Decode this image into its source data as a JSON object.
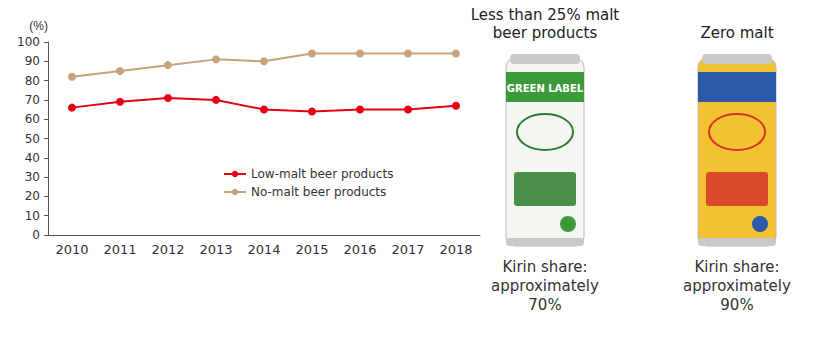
{
  "chart_data": {
    "type": "line",
    "y_label": "(%)",
    "categories": [
      "2010",
      "2011",
      "2012",
      "2013",
      "2014",
      "2015",
      "2016",
      "2017",
      "2018"
    ],
    "series": [
      {
        "name": "Low-malt beer products",
        "color": "#e60012",
        "marker": "circle",
        "values": [
          66,
          69,
          71,
          70,
          65,
          64,
          65,
          65,
          67
        ]
      },
      {
        "name": "No-malt beer products",
        "color": "#c4a47c",
        "values": [
          82,
          85,
          88,
          91,
          90,
          94,
          94,
          94,
          94
        ]
      }
    ],
    "ylim": [
      0,
      100
    ],
    "yticks": [
      0,
      10,
      20,
      30,
      40,
      50,
      60,
      70,
      80,
      90,
      100
    ],
    "grid": false,
    "legend": "inside"
  },
  "products": [
    {
      "title": "Less than 25% malt beer products",
      "can_label": "GREEN LABEL",
      "share": "Kirin share: approximately 70%"
    },
    {
      "title": "Zero malt",
      "share": "Kirin share: approximately 90%"
    }
  ]
}
